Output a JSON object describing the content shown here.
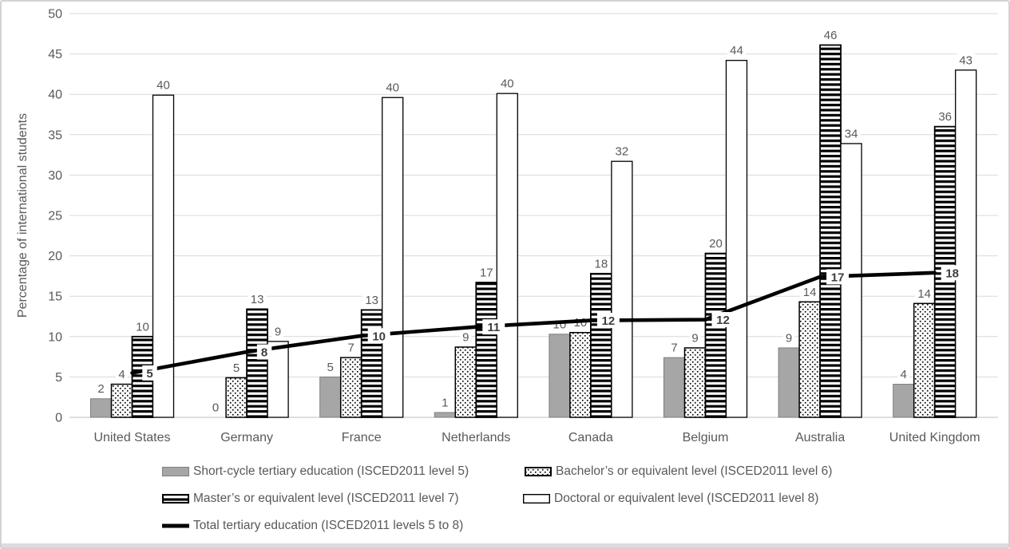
{
  "chart_data": {
    "type": "bar",
    "ylabel": "Percentage of international students",
    "ylim": [
      0,
      50
    ],
    "ytick_step": 5,
    "grid": true,
    "legend_position": "bottom",
    "categories": [
      "United States",
      "Germany",
      "France",
      "Netherlands",
      "Canada",
      "Belgium",
      "Australia",
      "United Kingdom"
    ],
    "yticks": [
      "0",
      "5",
      "10",
      "15",
      "20",
      "25",
      "30",
      "35",
      "40",
      "45",
      "50"
    ],
    "series": [
      {
        "name": "Short-cycle tertiary education (ISCED2011 level 5)",
        "style": "solid-gray",
        "values": [
          2.3,
          0,
          5,
          0.6,
          10.3,
          7.4,
          8.6,
          4.1
        ],
        "labels": [
          "2",
          "0",
          "5",
          "1",
          "10",
          "7",
          "9",
          "4"
        ]
      },
      {
        "name": "Bachelor’s or equivalent level (ISCED2011 level 6)",
        "style": "dotted",
        "values": [
          4.1,
          4.9,
          7.4,
          8.7,
          10.5,
          8.6,
          14.3,
          14.1
        ],
        "labels": [
          "4",
          "5",
          "7",
          "9",
          "10",
          "9",
          "14",
          "14"
        ]
      },
      {
        "name": "Master’s or equivalent level (ISCED2011 level 7)",
        "style": "hstripes",
        "values": [
          10,
          13.4,
          13.3,
          16.7,
          17.8,
          20.3,
          46.1,
          36
        ],
        "labels": [
          "10",
          "13",
          "13",
          "17",
          "18",
          "20",
          "46",
          "36"
        ]
      },
      {
        "name": "Doctoral or equivalent level  (ISCED2011 level 8)",
        "style": "outline",
        "values": [
          39.9,
          9.4,
          39.6,
          40.1,
          31.7,
          44.2,
          33.9,
          43
        ],
        "labels": [
          "40",
          "9",
          "40",
          "40",
          "32",
          "44",
          "34",
          "43"
        ]
      }
    ],
    "line_series": {
      "name": "Total tertiary education (ISCED2011 levels 5 to 8)",
      "values": [
        5.5,
        8.1,
        10.1,
        11.2,
        12.0,
        12.1,
        17.4,
        17.9
      ],
      "labels": [
        "5",
        "8",
        "10",
        "11",
        "12",
        "12",
        "17",
        "18"
      ]
    }
  },
  "colors": {
    "bar_gray_fill": "#a6a6a6",
    "bar_gray_stroke": "#7f7f7f",
    "pattern_black": "#000000",
    "gridline": "#d9d9d9",
    "axis_line": "#bfbfbf",
    "label_text": "#595959",
    "total_label_text": "#3f3f3f",
    "line_black": "#000000"
  }
}
